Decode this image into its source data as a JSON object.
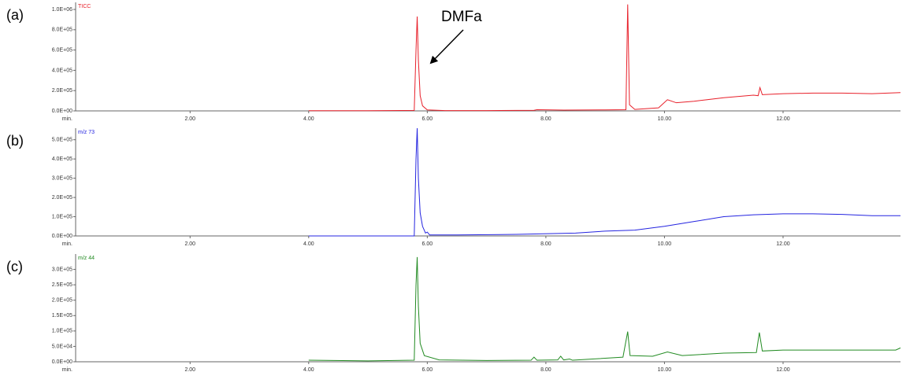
{
  "chart_data": [
    {
      "type": "line",
      "panel_label": "(a)",
      "annotation": "DMFa",
      "xlabel": "min.",
      "x": [
        4.0,
        5.0,
        5.78,
        5.81,
        5.83,
        5.85,
        5.88,
        5.92,
        6.0,
        6.3,
        7.0,
        7.8,
        7.85,
        8.3,
        9.0,
        9.35,
        9.38,
        9.41,
        9.5,
        9.9,
        10.05,
        10.2,
        10.5,
        11.0,
        11.5,
        11.58,
        11.61,
        11.65,
        12.0,
        12.5,
        13.0,
        13.5,
        13.98
      ],
      "series": [
        {
          "name": "TICC",
          "color": "#e8202a",
          "values": [
            2000,
            2000,
            5000,
            600000,
            930000,
            500000,
            150000,
            50000,
            10000,
            3000,
            3000,
            6000,
            12000,
            8000,
            10000,
            12000,
            1050000,
            60000,
            15000,
            30000,
            110000,
            80000,
            95000,
            130000,
            155000,
            150000,
            230000,
            160000,
            170000,
            175000,
            175000,
            170000,
            180000
          ]
        }
      ],
      "xlim": [
        0.07,
        13.98
      ],
      "xticks": [
        {
          "value": 2,
          "label": "2.00"
        },
        {
          "value": 4,
          "label": "4.00"
        },
        {
          "value": 6,
          "label": "6.00"
        },
        {
          "value": 8,
          "label": "8.00"
        },
        {
          "value": 10,
          "label": "10.00"
        },
        {
          "value": 12,
          "label": "12.00"
        }
      ],
      "ylim": [
        0,
        1070000
      ],
      "yticks": [
        {
          "value": 0,
          "label": "0.0E+00"
        },
        {
          "value": 200000,
          "label": "2.0E+05"
        },
        {
          "value": 400000,
          "label": "4.0E+05"
        },
        {
          "value": 600000,
          "label": "6.0E+05"
        },
        {
          "value": 800000,
          "label": "8.0E+05"
        },
        {
          "value": 1000000,
          "label": "1.0E+06"
        }
      ]
    },
    {
      "type": "line",
      "panel_label": "(b)",
      "xlabel": "min.",
      "x": [
        4.0,
        5.78,
        5.81,
        5.83,
        5.85,
        5.88,
        5.92,
        5.97,
        6.0,
        6.04,
        6.5,
        7.5,
        8.5,
        9.0,
        9.5,
        10.0,
        10.5,
        11.0,
        11.5,
        12.0,
        12.5,
        13.0,
        13.5,
        13.98
      ],
      "series": [
        {
          "name": "m/z 73",
          "color": "#2424e0",
          "values": [
            0,
            0,
            400000,
            560000,
            300000,
            120000,
            50000,
            15000,
            20000,
            5000,
            5000,
            8000,
            15000,
            25000,
            30000,
            50000,
            75000,
            100000,
            110000,
            115000,
            115000,
            112000,
            105000,
            105000
          ]
        }
      ],
      "xlim": [
        0.07,
        13.98
      ],
      "xticks": [
        {
          "value": 2,
          "label": "2.00"
        },
        {
          "value": 4,
          "label": "4.00"
        },
        {
          "value": 6,
          "label": "6.00"
        },
        {
          "value": 8,
          "label": "8.00"
        },
        {
          "value": 10,
          "label": "10.00"
        },
        {
          "value": 12,
          "label": "12.00"
        }
      ],
      "ylim": [
        0,
        560000
      ],
      "yticks": [
        {
          "value": 0,
          "label": "0.0E+00"
        },
        {
          "value": 100000,
          "label": "1.0E+05"
        },
        {
          "value": 200000,
          "label": "2.0E+05"
        },
        {
          "value": 300000,
          "label": "3.0E+05"
        },
        {
          "value": 400000,
          "label": "4.0E+05"
        },
        {
          "value": 500000,
          "label": "5.0E+05"
        }
      ]
    },
    {
      "type": "line",
      "panel_label": "(c)",
      "xlabel": "min.",
      "x": [
        4.0,
        5.0,
        5.78,
        5.81,
        5.83,
        5.85,
        5.88,
        5.95,
        6.2,
        7.0,
        7.75,
        7.8,
        7.85,
        8.2,
        8.25,
        8.3,
        8.4,
        8.45,
        9.3,
        9.38,
        9.42,
        9.8,
        10.05,
        10.3,
        11.0,
        11.55,
        11.6,
        11.65,
        12.0,
        13.0,
        13.9,
        13.98
      ],
      "series": [
        {
          "name": "m/z 44",
          "color": "#228b22",
          "values": [
            5000,
            3000,
            5000,
            250000,
            340000,
            180000,
            60000,
            20000,
            6000,
            4000,
            5000,
            15000,
            5000,
            6000,
            18000,
            6000,
            9000,
            5000,
            15000,
            98000,
            20000,
            18000,
            32000,
            20000,
            28000,
            30000,
            95000,
            35000,
            38000,
            38000,
            38000,
            45000
          ]
        }
      ],
      "xlim": [
        0.07,
        13.98
      ],
      "xticks": [
        {
          "value": 2,
          "label": "2.00"
        },
        {
          "value": 4,
          "label": "4.00"
        },
        {
          "value": 6,
          "label": "6.00"
        },
        {
          "value": 8,
          "label": "8.00"
        },
        {
          "value": 10,
          "label": "10.00"
        },
        {
          "value": 12,
          "label": "12.00"
        }
      ],
      "ylim": [
        0,
        350000
      ],
      "yticks": [
        {
          "value": 0,
          "label": "0.0E+00"
        },
        {
          "value": 50000,
          "label": "5.0E+04"
        },
        {
          "value": 100000,
          "label": "1.0E+05"
        },
        {
          "value": 150000,
          "label": "1.5E+05"
        },
        {
          "value": 200000,
          "label": "2.0E+05"
        },
        {
          "value": 250000,
          "label": "2.5E+05"
        },
        {
          "value": 300000,
          "label": "3.0E+05"
        }
      ]
    }
  ]
}
